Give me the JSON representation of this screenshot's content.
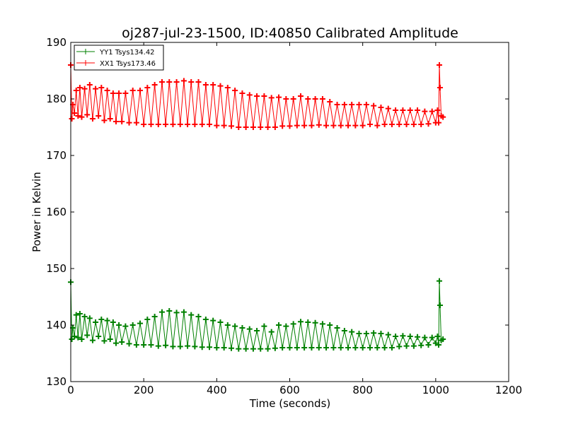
{
  "chart_data": {
    "type": "line",
    "title": "oj287-jul-23-1500, ID:40850 Calibrated Amplitude",
    "xlabel": "Time (seconds)",
    "ylabel": "Power in Kelvin",
    "xlim": [
      0,
      1200
    ],
    "ylim": [
      130,
      190
    ],
    "xticks": [
      0,
      200,
      400,
      600,
      800,
      1000,
      1200
    ],
    "yticks": [
      130,
      140,
      150,
      160,
      170,
      180,
      190
    ],
    "grid": false,
    "legend_position": "top-left",
    "marker": "+",
    "series": [
      {
        "name": "YY1 Tsys134.42",
        "color": "#008000",
        "x": [
          0,
          3,
          6,
          10,
          15,
          20,
          25,
          30,
          38,
          45,
          52,
          60,
          68,
          76,
          84,
          92,
          100,
          108,
          116,
          124,
          132,
          140,
          150,
          160,
          170,
          180,
          190,
          200,
          210,
          220,
          230,
          240,
          250,
          260,
          270,
          280,
          290,
          300,
          310,
          320,
          330,
          340,
          350,
          360,
          370,
          380,
          390,
          400,
          410,
          420,
          430,
          440,
          450,
          460,
          470,
          480,
          490,
          500,
          510,
          520,
          530,
          540,
          550,
          560,
          570,
          580,
          590,
          600,
          610,
          620,
          630,
          640,
          650,
          660,
          670,
          680,
          690,
          700,
          710,
          720,
          730,
          740,
          750,
          760,
          770,
          780,
          790,
          800,
          810,
          820,
          830,
          840,
          850,
          860,
          870,
          880,
          890,
          900,
          910,
          920,
          930,
          940,
          950,
          960,
          970,
          980,
          990,
          1000,
          1005,
          1008,
          1010,
          1012,
          1015,
          1020
        ],
        "y": [
          147.6,
          137.5,
          139.5,
          138.0,
          141.8,
          137.8,
          142.0,
          137.5,
          141.5,
          138.2,
          141.2,
          137.3,
          140.5,
          138.0,
          141.0,
          137.2,
          140.8,
          137.5,
          140.5,
          136.8,
          140.0,
          137.0,
          139.8,
          136.7,
          140.0,
          136.5,
          140.3,
          136.5,
          141.0,
          136.5,
          141.5,
          136.3,
          142.3,
          136.4,
          142.5,
          136.2,
          142.2,
          136.2,
          142.3,
          136.3,
          141.8,
          136.2,
          141.5,
          136.1,
          141.0,
          136.1,
          140.8,
          136.0,
          140.5,
          136.0,
          140.0,
          135.9,
          139.8,
          135.8,
          139.5,
          135.8,
          139.3,
          135.8,
          139.0,
          135.8,
          139.8,
          135.8,
          138.8,
          135.9,
          140.0,
          136.0,
          139.8,
          136.0,
          140.2,
          136.0,
          140.6,
          136.0,
          140.5,
          136.0,
          140.4,
          136.0,
          140.2,
          136.0,
          140.0,
          136.0,
          139.5,
          136.0,
          139.0,
          136.0,
          138.8,
          136.0,
          138.5,
          136.0,
          138.5,
          136.0,
          138.6,
          136.0,
          138.5,
          136.0,
          138.3,
          136.0,
          138.0,
          136.2,
          138.1,
          136.3,
          138.0,
          136.3,
          137.9,
          136.4,
          137.8,
          136.5,
          137.8,
          136.8,
          138.0,
          136.5,
          147.8,
          143.5,
          137.3,
          137.5
        ]
      },
      {
        "name": "XX1 Tsys173.46",
        "color": "#ff0000",
        "x": [
          0,
          3,
          6,
          10,
          15,
          20,
          25,
          30,
          38,
          45,
          52,
          60,
          68,
          76,
          84,
          92,
          100,
          108,
          116,
          124,
          132,
          140,
          150,
          160,
          170,
          180,
          190,
          200,
          210,
          220,
          230,
          240,
          250,
          260,
          270,
          280,
          290,
          300,
          310,
          320,
          330,
          340,
          350,
          360,
          370,
          380,
          390,
          400,
          410,
          420,
          430,
          440,
          450,
          460,
          470,
          480,
          490,
          500,
          510,
          520,
          530,
          540,
          550,
          560,
          570,
          580,
          590,
          600,
          610,
          620,
          630,
          640,
          650,
          660,
          670,
          680,
          690,
          700,
          710,
          720,
          730,
          740,
          750,
          760,
          770,
          780,
          790,
          800,
          810,
          820,
          830,
          840,
          850,
          860,
          870,
          880,
          890,
          900,
          910,
          920,
          930,
          940,
          950,
          960,
          970,
          980,
          990,
          1000,
          1005,
          1008,
          1010,
          1012,
          1015,
          1020
        ],
        "y": [
          186.0,
          176.5,
          179.0,
          177.5,
          181.5,
          177.0,
          182.0,
          176.8,
          181.8,
          177.2,
          182.5,
          176.5,
          181.8,
          177.0,
          182.0,
          176.2,
          181.5,
          176.5,
          181.0,
          176.0,
          181.0,
          176.0,
          181.0,
          175.8,
          181.5,
          175.8,
          181.5,
          175.5,
          182.0,
          175.5,
          182.5,
          175.5,
          183.0,
          175.5,
          183.0,
          175.5,
          183.0,
          175.5,
          183.2,
          175.5,
          183.0,
          175.5,
          183.0,
          175.5,
          182.5,
          175.5,
          182.5,
          175.3,
          182.3,
          175.3,
          182.0,
          175.2,
          181.5,
          175.0,
          181.0,
          175.0,
          180.7,
          175.0,
          180.5,
          175.0,
          180.5,
          175.0,
          180.2,
          175.0,
          180.3,
          175.2,
          180.0,
          175.2,
          180.0,
          175.3,
          180.5,
          175.3,
          180.0,
          175.3,
          180.0,
          175.4,
          180.0,
          175.3,
          179.5,
          175.3,
          179.0,
          175.3,
          179.0,
          175.3,
          179.0,
          175.3,
          179.0,
          175.3,
          179.0,
          175.5,
          178.8,
          175.3,
          178.5,
          175.5,
          178.3,
          175.5,
          178.0,
          175.5,
          178.0,
          175.5,
          178.0,
          175.5,
          178.0,
          175.5,
          177.8,
          175.6,
          177.8,
          175.8,
          178.0,
          175.8,
          186.0,
          182.0,
          177.0,
          176.8
        ]
      }
    ]
  }
}
